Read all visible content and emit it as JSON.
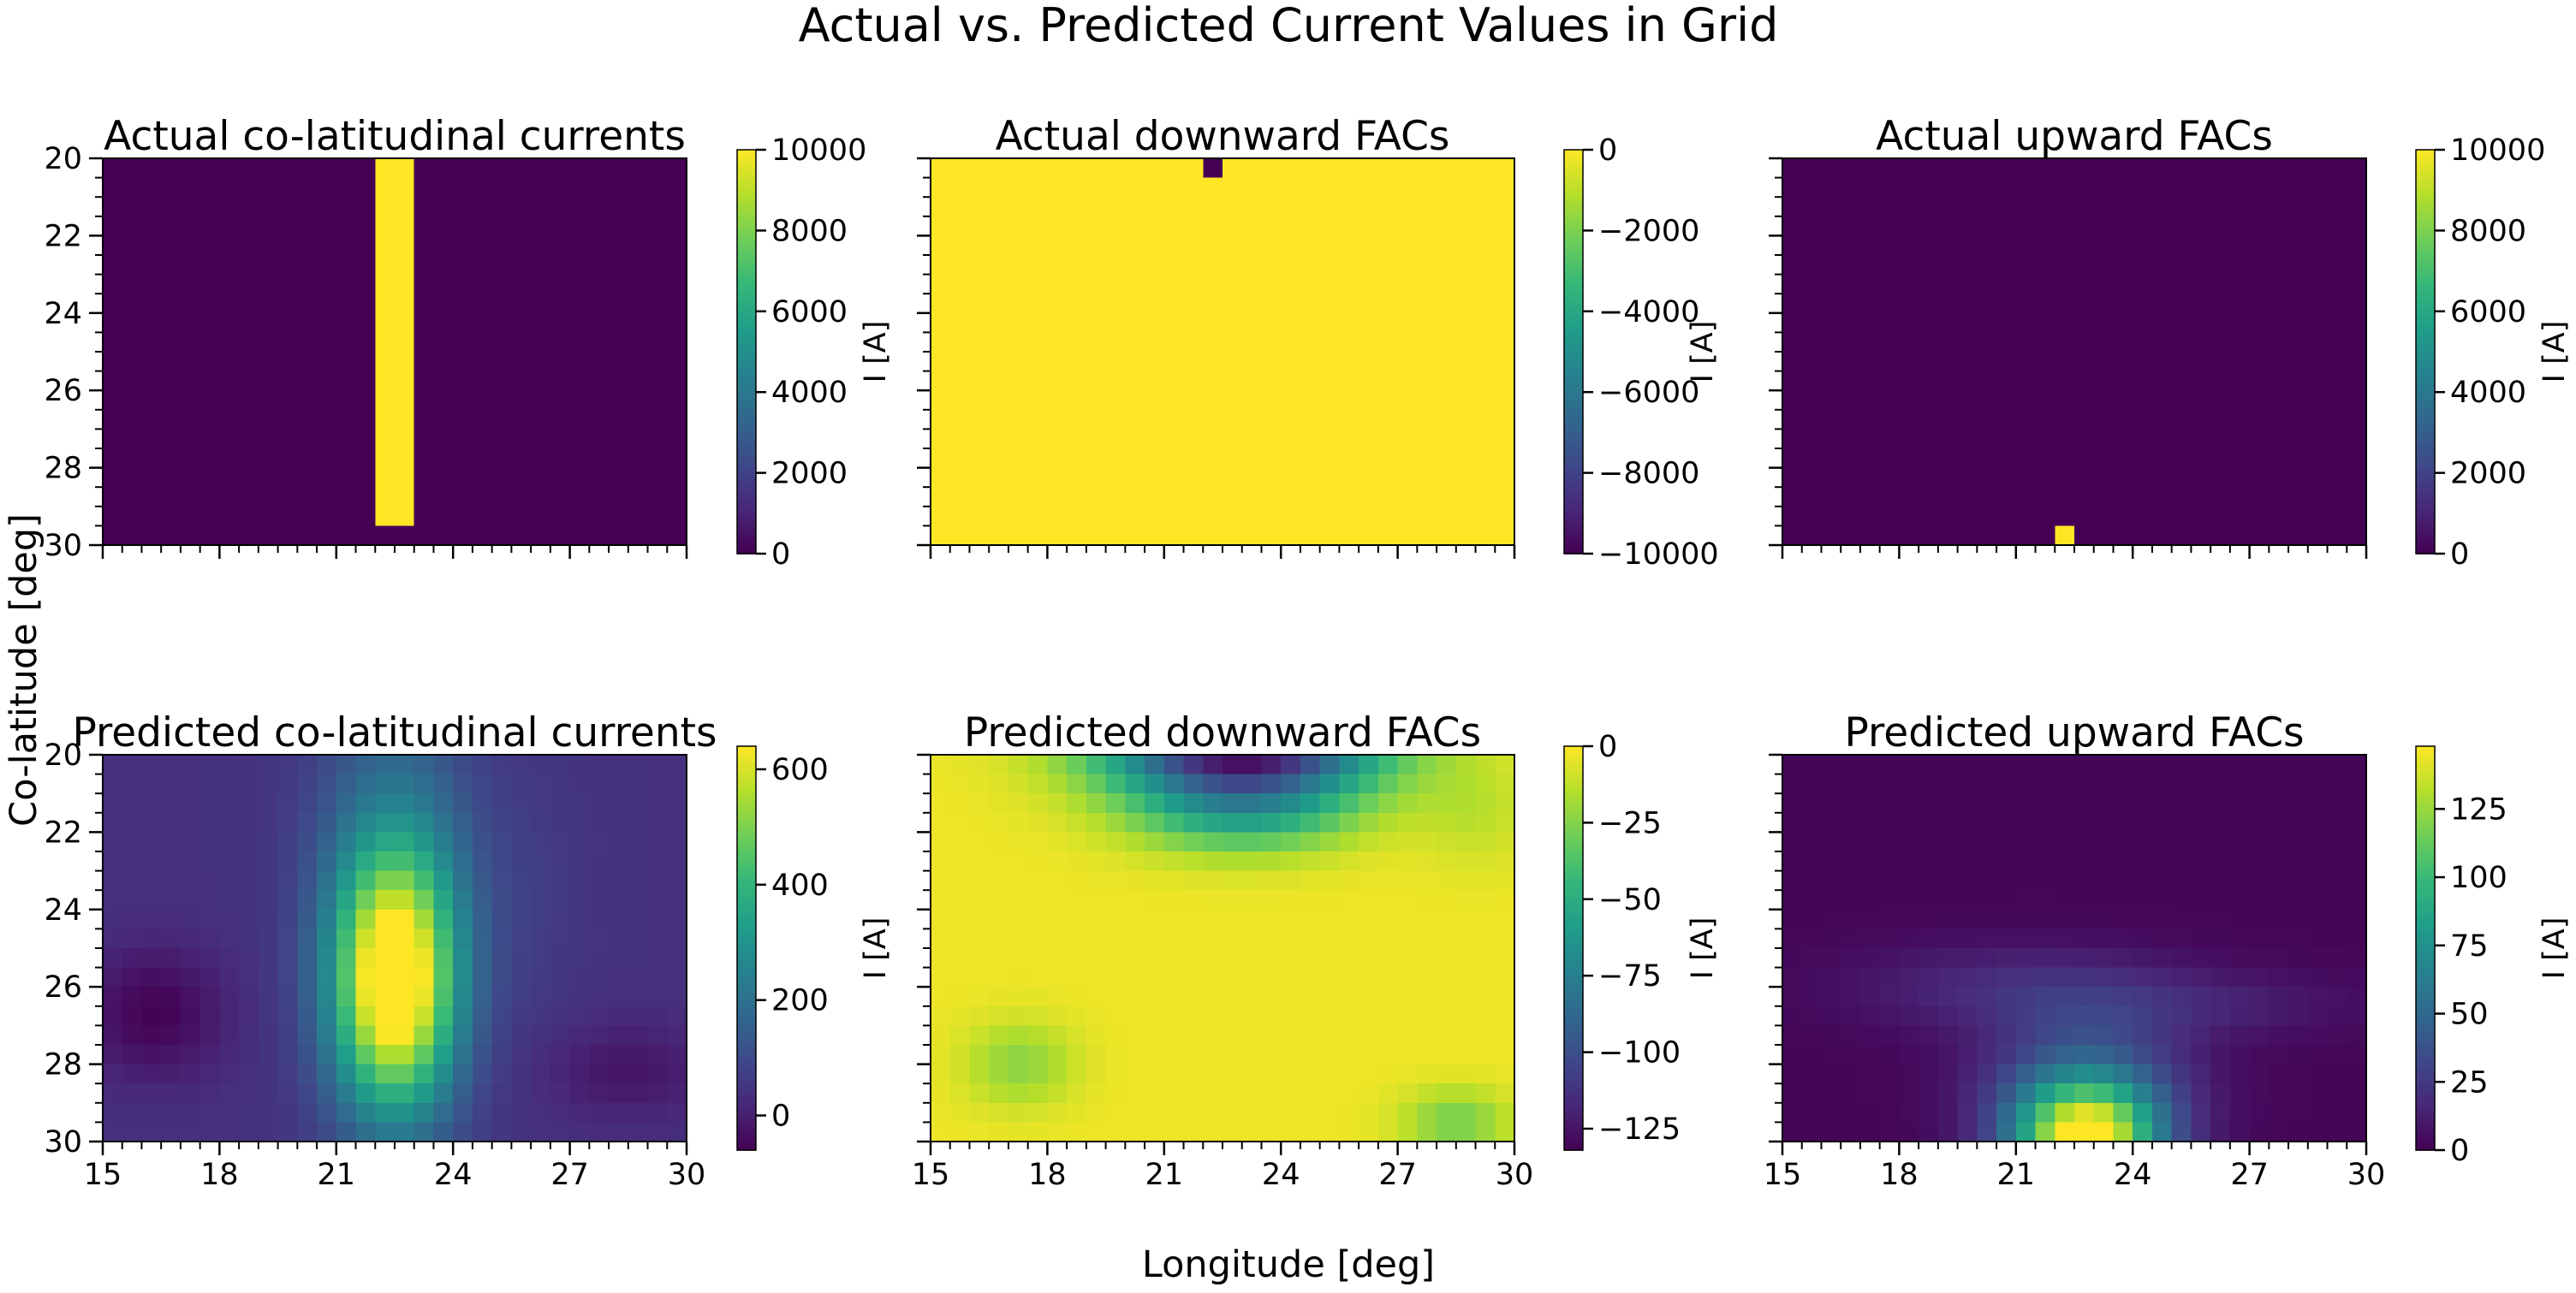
{
  "figure": {
    "title": "Actual vs. Predicted Current Values in Grid",
    "xlabel": "Longitude [deg]",
    "ylabel": "Co-latitude [deg]"
  },
  "colormap": [
    "#440154",
    "#482878",
    "#3e4989",
    "#31688e",
    "#26828e",
    "#1f9e89",
    "#35b779",
    "#6ece58",
    "#b5de2b",
    "#fde725"
  ],
  "chart_data": [
    {
      "type": "heatmap",
      "title": "Actual co-latitudinal currents",
      "x_range": [
        15,
        30
      ],
      "y_range": [
        20,
        30
      ],
      "y_inverted": true,
      "resolution_deg": 0.5,
      "ylim": [
        0,
        10000
      ],
      "colorbar_label": "I [A]",
      "colorbar_ticks": [
        "0",
        "2000",
        "4000",
        "6000",
        "8000",
        "10000"
      ],
      "colorbar_tick_values": [
        0,
        2000,
        4000,
        6000,
        8000,
        10000
      ],
      "x_ticks": [],
      "y_ticks": [
        "20",
        "22",
        "24",
        "26",
        "28",
        "30"
      ],
      "background_value": 0,
      "features": [
        {
          "kind": "rect",
          "lon": [
            22,
            23
          ],
          "colat": [
            20,
            29.5
          ],
          "value": 10000
        }
      ]
    },
    {
      "type": "heatmap",
      "title": "Actual downward FACs",
      "x_range": [
        15,
        30
      ],
      "y_range": [
        20,
        30
      ],
      "y_inverted": true,
      "resolution_deg": 0.5,
      "ylim": [
        -10000,
        0
      ],
      "colorbar_label": "I [A]",
      "colorbar_ticks": [
        "0",
        "−2000",
        "−4000",
        "−6000",
        "−8000",
        "−10000"
      ],
      "colorbar_tick_values": [
        0,
        -2000,
        -4000,
        -6000,
        -8000,
        -10000
      ],
      "x_ticks": [],
      "y_ticks": [],
      "background_value": 0,
      "features": [
        {
          "kind": "rect",
          "lon": [
            22,
            22.5
          ],
          "colat": [
            20,
            20.5
          ],
          "value": -10000
        }
      ]
    },
    {
      "type": "heatmap",
      "title": "Actual upward FACs",
      "x_range": [
        15,
        30
      ],
      "y_range": [
        20,
        30
      ],
      "y_inverted": true,
      "resolution_deg": 0.5,
      "ylim": [
        0,
        10000
      ],
      "colorbar_label": "I [A]",
      "colorbar_ticks": [
        "0",
        "2000",
        "4000",
        "6000",
        "8000",
        "10000"
      ],
      "colorbar_tick_values": [
        0,
        2000,
        4000,
        6000,
        8000,
        10000
      ],
      "x_ticks": [],
      "y_ticks": [],
      "background_value": 0,
      "features": [
        {
          "kind": "rect",
          "lon": [
            22,
            22.5
          ],
          "colat": [
            29.5,
            30
          ],
          "value": 10000
        }
      ]
    },
    {
      "type": "heatmap",
      "title": "Predicted co-latitudinal currents",
      "x_range": [
        15,
        30
      ],
      "y_range": [
        20,
        30
      ],
      "y_inverted": true,
      "resolution_deg": 0.5,
      "ylim": [
        -60,
        640
      ],
      "colorbar_label": "I [A]",
      "colorbar_ticks": [
        "0",
        "200",
        "400",
        "600"
      ],
      "colorbar_tick_values": [
        0,
        200,
        400,
        600
      ],
      "x_ticks": [
        "15",
        "18",
        "21",
        "24",
        "27",
        "30"
      ],
      "y_ticks": [
        "20",
        "22",
        "24",
        "26",
        "28",
        "30"
      ],
      "background_value": 40,
      "features": [
        {
          "kind": "blob",
          "lon": 22.5,
          "colat": 26.0,
          "slon": 1.1,
          "scolat": 2.3,
          "value": 590
        },
        {
          "kind": "blob",
          "lon": 22.5,
          "colat": 23.5,
          "slon": 1.4,
          "scolat": 3.5,
          "value": 180
        },
        {
          "kind": "blob",
          "lon": 16.3,
          "colat": 26.7,
          "slon": 1.3,
          "scolat": 1.2,
          "value": -95
        },
        {
          "kind": "blob",
          "lon": 28.5,
          "colat": 28.2,
          "slon": 1.5,
          "scolat": 0.9,
          "value": -60
        },
        {
          "kind": "blob",
          "lon": 26.0,
          "colat": 23.5,
          "slon": 1.0,
          "scolat": 2.5,
          "value": 25
        }
      ]
    },
    {
      "type": "heatmap",
      "title": "Predicted downward FACs",
      "x_range": [
        15,
        30
      ],
      "y_range": [
        20,
        30
      ],
      "y_inverted": true,
      "resolution_deg": 0.5,
      "ylim": [
        -132,
        0
      ],
      "colorbar_label": "I [A]",
      "colorbar_ticks": [
        "0",
        "−25",
        "−50",
        "−75",
        "−100",
        "−125"
      ],
      "colorbar_tick_values": [
        0,
        -25,
        -50,
        -75,
        -100,
        -125
      ],
      "x_ticks": [
        "15",
        "18",
        "21",
        "24",
        "27",
        "30"
      ],
      "y_ticks": [],
      "background_value": -3,
      "features": [
        {
          "kind": "blob",
          "lon": 23.0,
          "colat": 19.7,
          "slon": 2.5,
          "scolat": 1.0,
          "value": -130
        },
        {
          "kind": "blob",
          "lon": 23.0,
          "colat": 21.5,
          "slon": 2.0,
          "scolat": 0.8,
          "value": -40
        },
        {
          "kind": "blob",
          "lon": 17.3,
          "colat": 28.0,
          "slon": 1.0,
          "scolat": 0.8,
          "value": -20
        },
        {
          "kind": "blob",
          "lon": 28.5,
          "colat": 29.5,
          "slon": 1.0,
          "scolat": 0.6,
          "value": -25
        },
        {
          "kind": "blob",
          "lon": 29.0,
          "colat": 21.5,
          "slon": 1.0,
          "scolat": 1.0,
          "value": -10
        }
      ]
    },
    {
      "type": "heatmap",
      "title": "Predicted upward FACs",
      "x_range": [
        15,
        30
      ],
      "y_range": [
        20,
        30
      ],
      "y_inverted": true,
      "resolution_deg": 0.5,
      "ylim": [
        0,
        148
      ],
      "colorbar_label": "I [A]",
      "colorbar_ticks": [
        "0",
        "25",
        "50",
        "75",
        "100",
        "125"
      ],
      "colorbar_tick_values": [
        0,
        25,
        50,
        75,
        100,
        125
      ],
      "x_ticks": [
        "15",
        "18",
        "21",
        "24",
        "27",
        "30"
      ],
      "y_ticks": [],
      "background_value": 2,
      "features": [
        {
          "kind": "blob",
          "lon": 22.8,
          "colat": 30.0,
          "slon": 1.3,
          "scolat": 1.0,
          "value": 140
        },
        {
          "kind": "blob",
          "lon": 22.8,
          "colat": 28.5,
          "slon": 1.8,
          "scolat": 1.3,
          "value": 40
        },
        {
          "kind": "blob",
          "lon": 21.0,
          "colat": 26.0,
          "slon": 3.0,
          "scolat": 0.8,
          "value": 15
        },
        {
          "kind": "blob",
          "lon": 25.5,
          "colat": 26.5,
          "slon": 3.0,
          "scolat": 0.6,
          "value": 10
        }
      ]
    }
  ]
}
